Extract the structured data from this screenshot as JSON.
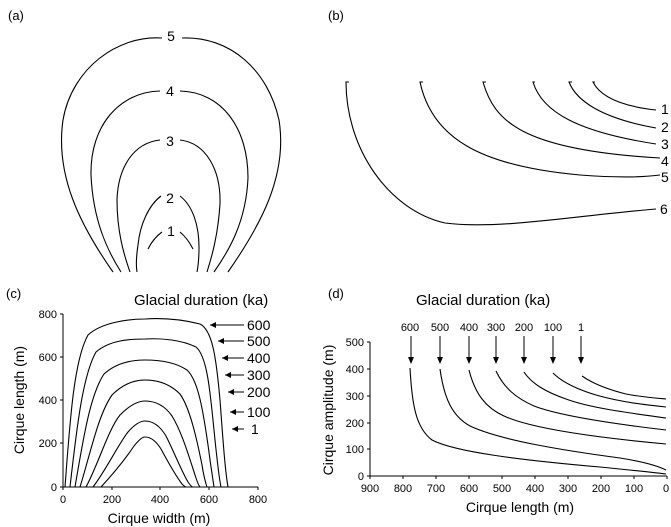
{
  "panels": {
    "a": {
      "tag": "(a)",
      "curve_labels": [
        "5",
        "4",
        "3",
        "2",
        "1"
      ]
    },
    "b": {
      "tag": "(b)",
      "curve_labels": [
        "1",
        "2",
        "3",
        "4",
        "5",
        "6"
      ]
    },
    "c": {
      "tag": "(c)",
      "legend_title": "Glacial duration (ka)",
      "duration_labels": [
        "600",
        "500",
        "400",
        "300",
        "200",
        "100",
        "1"
      ],
      "xlabel": "Cirque width (m)",
      "ylabel": "Cirque length (m)",
      "xticks": [
        "0",
        "200",
        "400",
        "600",
        "800"
      ],
      "yticks": [
        "0",
        "200",
        "400",
        "600",
        "800"
      ]
    },
    "d": {
      "tag": "(d)",
      "legend_title": "Glacial duration (ka)",
      "duration_labels": [
        "600",
        "500",
        "400",
        "300",
        "200",
        "100",
        "1"
      ],
      "xlabel": "Cirque length (m)",
      "ylabel": "Cirque amplitude (m)",
      "xticks": [
        "900",
        "800",
        "700",
        "600",
        "500",
        "400",
        "300",
        "200",
        "100",
        "0"
      ],
      "yticks": [
        "0",
        "100",
        "200",
        "300",
        "400",
        "500"
      ]
    }
  }
}
